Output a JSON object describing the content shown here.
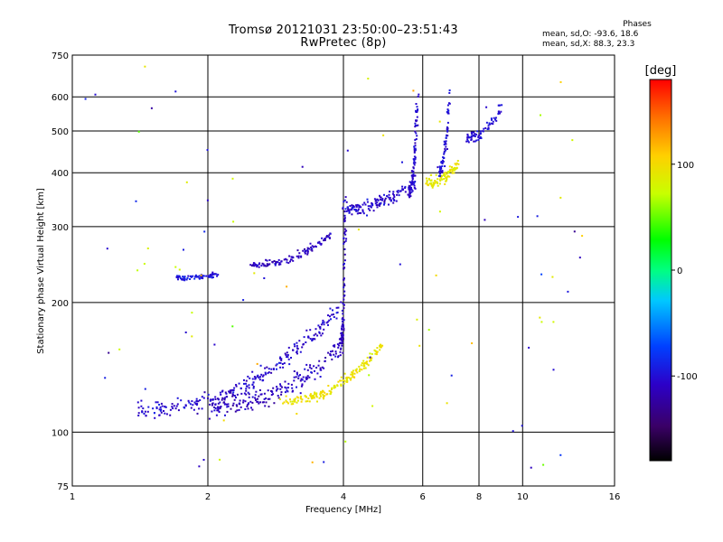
{
  "title": {
    "line1": "Tromsø 20121031 23:50:00–23:51:43",
    "line2": "RwPretec (8p)"
  },
  "phases_box": {
    "heading": "Phases",
    "line_o": "mean, sd,O:  -93.6, 18.6",
    "line_x": "mean, sd,X:   88.3, 23.3"
  },
  "colorbar": {
    "label": "[deg]",
    "tick_labels": [
      "100",
      "0",
      "-100"
    ],
    "tick_values": [
      100,
      0,
      -100
    ],
    "range": [
      -180,
      180
    ]
  },
  "chart_data": {
    "type": "scatter",
    "xlabel": "Frequency [MHz]",
    "ylabel": "Stationary phase Virtual Height [km]",
    "xscale": "log",
    "yscale": "log",
    "xlim": [
      1,
      16
    ],
    "ylim": [
      75,
      750
    ],
    "x_ticks": [
      1,
      2,
      4,
      6,
      8,
      10,
      16
    ],
    "x_tick_labels": [
      "1",
      "2",
      "4",
      "6",
      "8",
      "10",
      "16"
    ],
    "y_ticks": [
      75,
      100,
      200,
      300,
      400,
      500,
      600,
      750
    ],
    "y_tick_labels": [
      "75",
      "100",
      "200",
      "300",
      "400",
      "500",
      "600",
      "750"
    ],
    "grid": true,
    "color_mapping": "phase in degrees",
    "clusters": [
      {
        "name_hint": "E/F1 lower trace",
        "x_range": [
          1.4,
          4.0
        ],
        "y_start": 112,
        "y_end": 200,
        "phase": -105,
        "count": 260,
        "spread": 0.06
      },
      {
        "name_hint": "upper blue band",
        "x_range": [
          2.0,
          4.0
        ],
        "y_start": 115,
        "y_end": 160,
        "phase": -110,
        "count": 200,
        "spread": 0.08
      },
      {
        "name_hint": "yellow X-mode trace",
        "x_range": [
          2.9,
          4.9
        ],
        "y_start": 118,
        "y_end": 160,
        "phase": 95,
        "count": 170,
        "spread": 0.04
      },
      {
        "name_hint": "F-layer lower trace",
        "x_range": [
          1.7,
          2.1
        ],
        "y_start": 228,
        "y_end": 232,
        "phase": -95,
        "count": 70,
        "spread": 0.02
      },
      {
        "name_hint": "F-layer rising trace",
        "x_range": [
          2.5,
          3.8
        ],
        "y_start": 245,
        "y_end": 290,
        "phase": -110,
        "count": 110,
        "spread": 0.03
      },
      {
        "name_hint": "vertical line at 4 MHz",
        "x_range": [
          3.95,
          4.05
        ],
        "y_start": 160,
        "y_end": 380,
        "phase": -110,
        "count": 80,
        "spread": 0.05
      },
      {
        "name_hint": "F2 trace 4-6 MHz",
        "x_range": [
          4.0,
          5.8
        ],
        "y_start": 330,
        "y_end": 380,
        "phase": -105,
        "count": 140,
        "spread": 0.05
      },
      {
        "name_hint": "F2 vertical at 5.7 MHz",
        "x_range": [
          5.6,
          5.85
        ],
        "y_start": 360,
        "y_end": 620,
        "phase": -105,
        "count": 90,
        "spread": 0.05
      },
      {
        "name_hint": "F2 X-mode 6-7 MHz",
        "x_range": [
          6.1,
          7.2
        ],
        "y_start": 380,
        "y_end": 420,
        "phase": 90,
        "count": 90,
        "spread": 0.05
      },
      {
        "name_hint": "F2 vertical 6.7 MHz",
        "x_range": [
          6.5,
          6.9
        ],
        "y_start": 400,
        "y_end": 620,
        "phase": -100,
        "count": 70,
        "spread": 0.06
      },
      {
        "name_hint": "F2 upper 7.5-9 MHz",
        "x_range": [
          7.5,
          9.0
        ],
        "y_start": 480,
        "y_end": 580,
        "phase": -100,
        "count": 70,
        "spread": 0.05
      },
      {
        "name_hint": "scattered noise",
        "x_range": [
          1.0,
          14.0
        ],
        "y_start": 80,
        "y_end": 720,
        "phase": 0,
        "count": 90,
        "spread": 1.0
      }
    ]
  },
  "colors": {
    "background": "#ffffff",
    "axes": "#000000",
    "grid": "#000000"
  }
}
